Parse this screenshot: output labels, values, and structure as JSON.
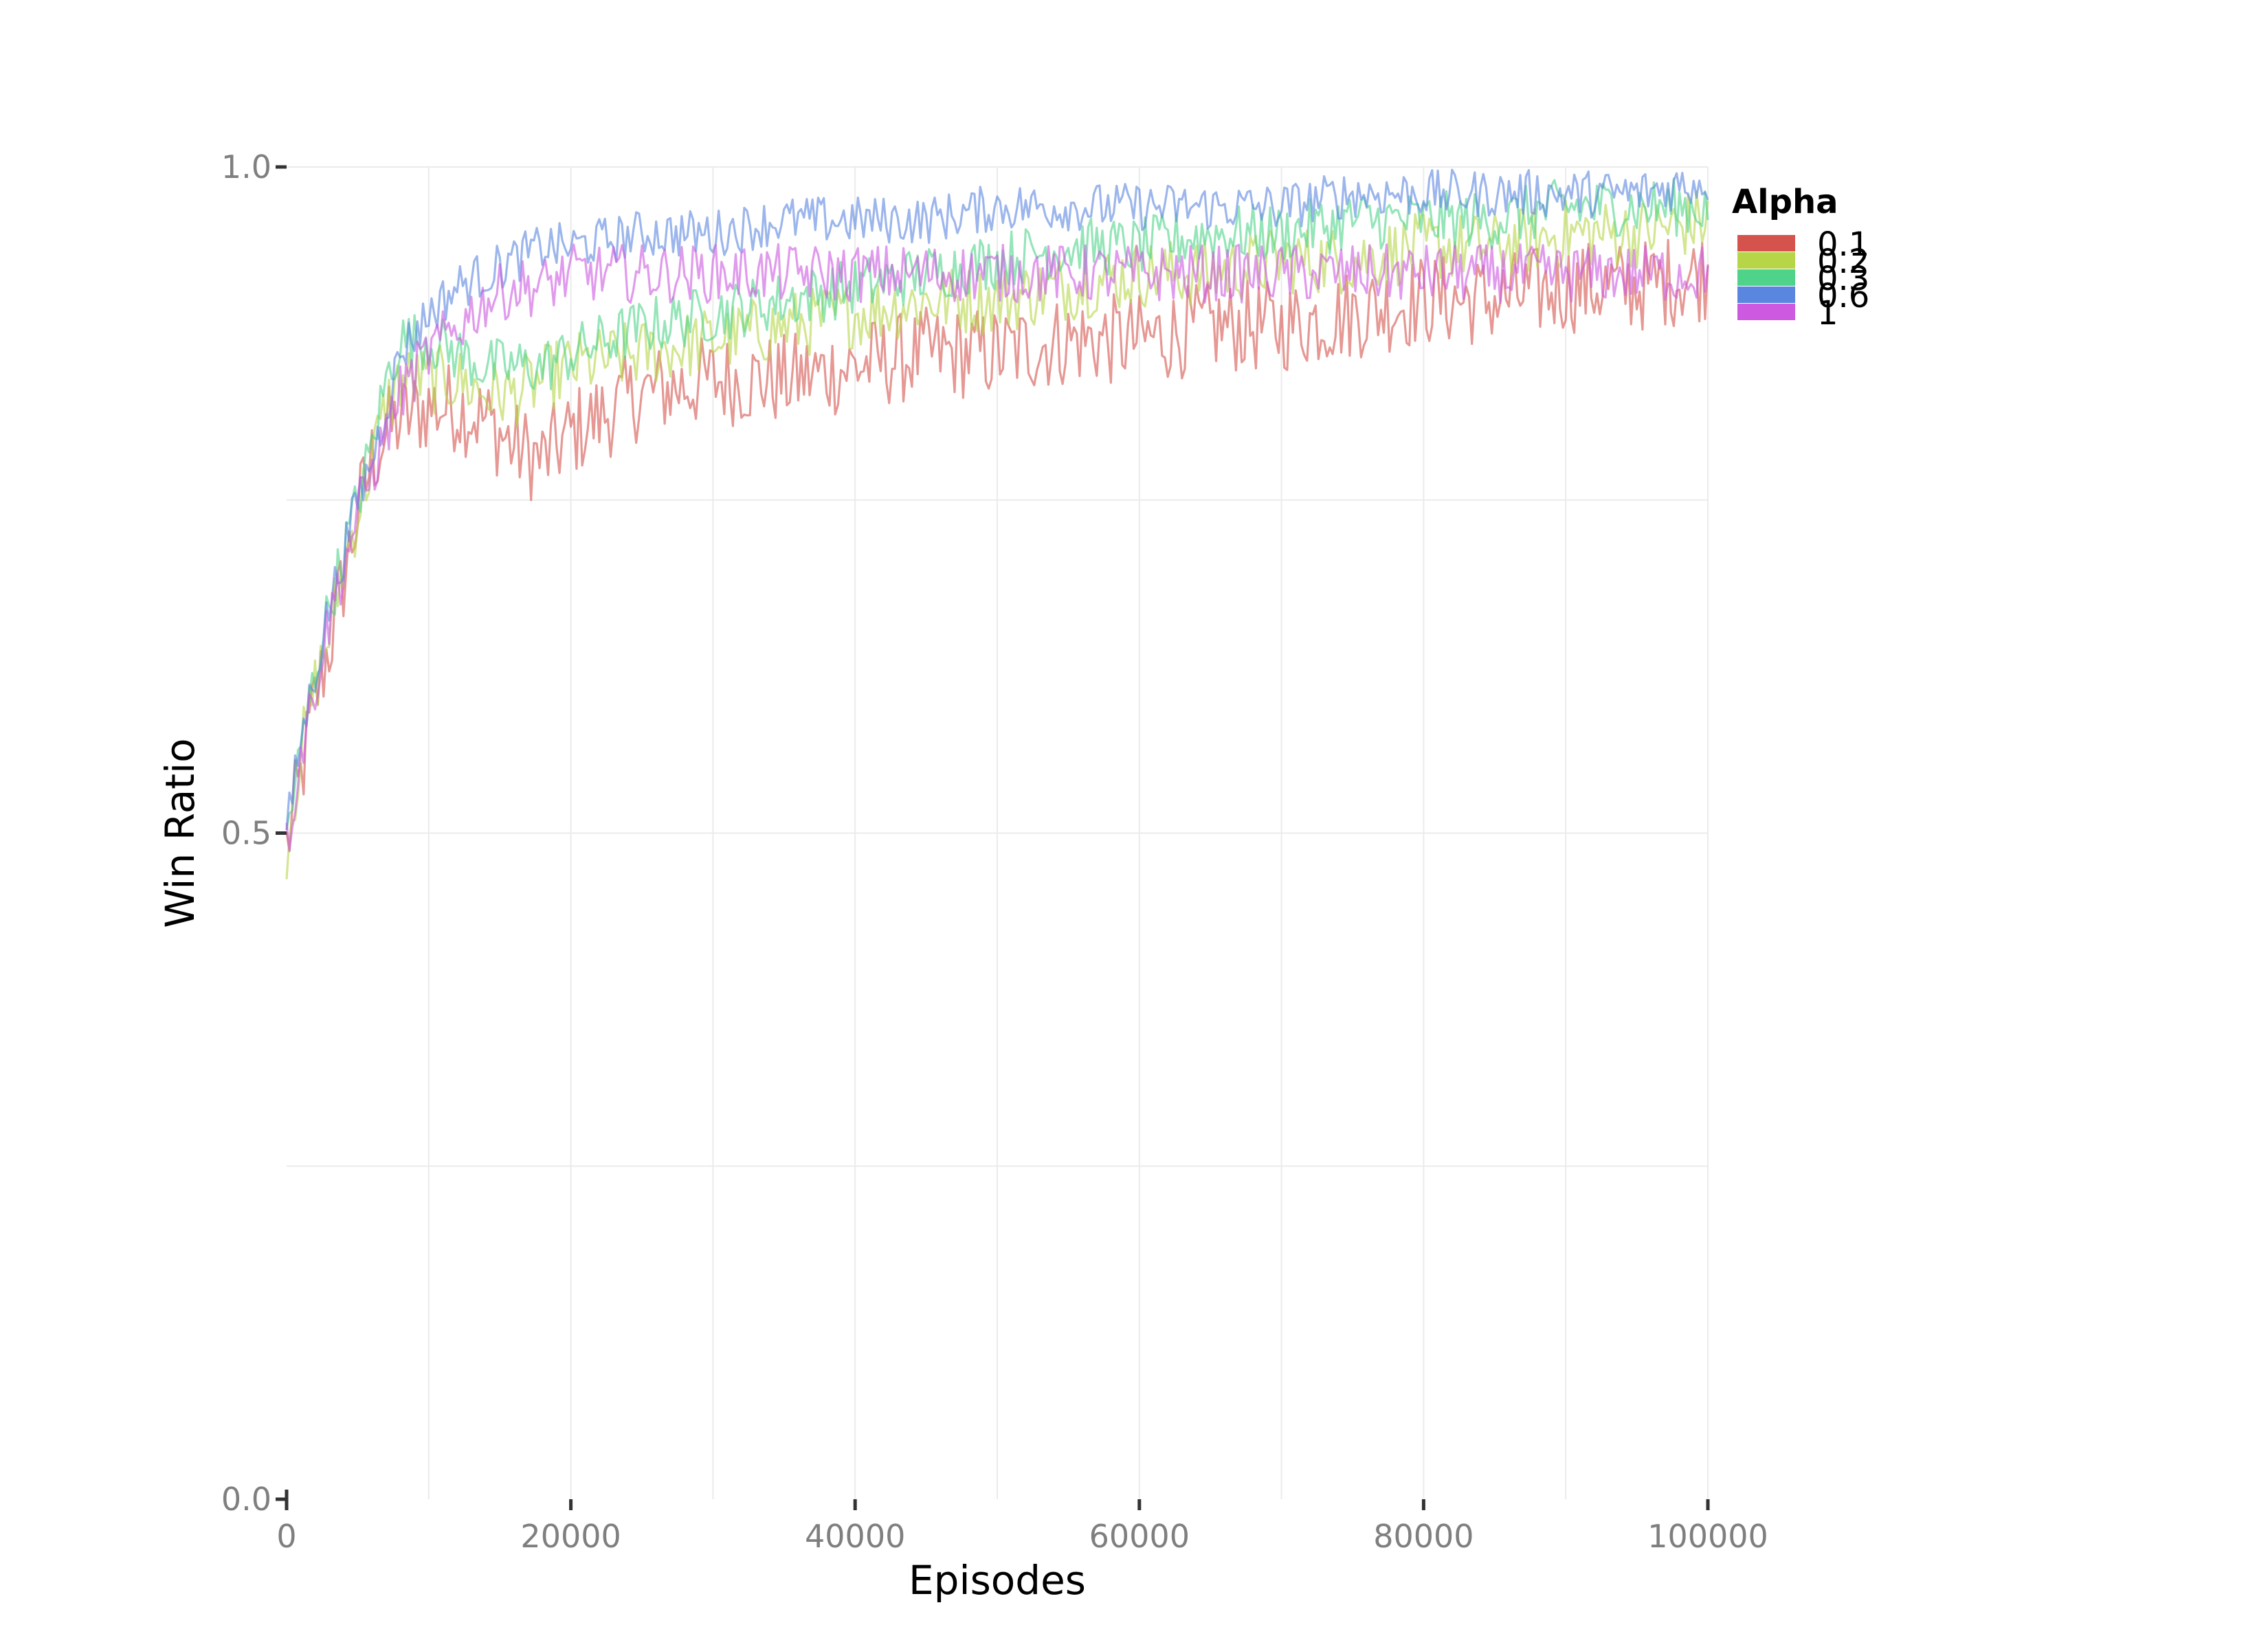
{
  "chart_data": {
    "type": "line",
    "title": "",
    "xlabel": "Episodes",
    "ylabel": "Win Ratio",
    "xlim": [
      0,
      100000
    ],
    "ylim": [
      0,
      1.0
    ],
    "x_ticks": [
      0,
      20000,
      40000,
      60000,
      80000,
      100000
    ],
    "x_tick_labels": [
      "0",
      "20000",
      "40000",
      "60000",
      "80000",
      "100000"
    ],
    "y_ticks": [
      0.0,
      0.5,
      1.0
    ],
    "y_tick_labels": [
      "0.0",
      "0.5",
      "1.0"
    ],
    "grid": true,
    "legend": {
      "title": "Alpha",
      "placement": "right"
    },
    "x": [
      0,
      1000,
      2000,
      3000,
      4000,
      5000,
      6000,
      7000,
      8000,
      10000,
      12000,
      14000,
      16000,
      18000,
      20000,
      25000,
      30000,
      35000,
      40000,
      45000,
      50000,
      55000,
      60000,
      65000,
      70000,
      75000,
      80000,
      85000,
      90000,
      95000,
      100000
    ],
    "series": [
      {
        "name": "0.1",
        "color": "#d4544d",
        "values": [
          0.49,
          0.54,
          0.6,
          0.64,
          0.69,
          0.74,
          0.78,
          0.8,
          0.81,
          0.82,
          0.82,
          0.81,
          0.79,
          0.78,
          0.8,
          0.83,
          0.84,
          0.84,
          0.85,
          0.86,
          0.86,
          0.87,
          0.87,
          0.88,
          0.88,
          0.89,
          0.9,
          0.9,
          0.91,
          0.91,
          0.92
        ]
      },
      {
        "name": "0.2",
        "color": "#b6d648",
        "values": [
          0.49,
          0.56,
          0.61,
          0.65,
          0.7,
          0.74,
          0.78,
          0.82,
          0.84,
          0.84,
          0.84,
          0.83,
          0.83,
          0.84,
          0.85,
          0.86,
          0.87,
          0.88,
          0.89,
          0.9,
          0.9,
          0.91,
          0.92,
          0.92,
          0.93,
          0.93,
          0.94,
          0.94,
          0.95,
          0.95,
          0.96
        ]
      },
      {
        "name": "0.3",
        "color": "#4fd38a",
        "values": [
          0.5,
          0.56,
          0.62,
          0.67,
          0.71,
          0.75,
          0.79,
          0.84,
          0.87,
          0.87,
          0.86,
          0.85,
          0.85,
          0.85,
          0.86,
          0.88,
          0.89,
          0.9,
          0.91,
          0.92,
          0.93,
          0.94,
          0.94,
          0.95,
          0.95,
          0.96,
          0.96,
          0.96,
          0.97,
          0.97,
          0.97
        ]
      },
      {
        "name": "0.6",
        "color": "#5a86e0",
        "values": [
          0.5,
          0.57,
          0.62,
          0.67,
          0.71,
          0.75,
          0.78,
          0.82,
          0.86,
          0.89,
          0.91,
          0.92,
          0.93,
          0.94,
          0.94,
          0.95,
          0.95,
          0.96,
          0.96,
          0.96,
          0.97,
          0.97,
          0.97,
          0.97,
          0.97,
          0.98,
          0.98,
          0.98,
          0.98,
          0.98,
          0.99
        ]
      },
      {
        "name": "1",
        "color": "#cc59e0",
        "values": [
          0.49,
          0.56,
          0.61,
          0.66,
          0.7,
          0.74,
          0.77,
          0.8,
          0.83,
          0.86,
          0.88,
          0.9,
          0.91,
          0.91,
          0.92,
          0.92,
          0.92,
          0.92,
          0.92,
          0.92,
          0.92,
          0.92,
          0.92,
          0.92,
          0.92,
          0.92,
          0.92,
          0.92,
          0.92,
          0.92,
          0.92
        ]
      }
    ]
  }
}
